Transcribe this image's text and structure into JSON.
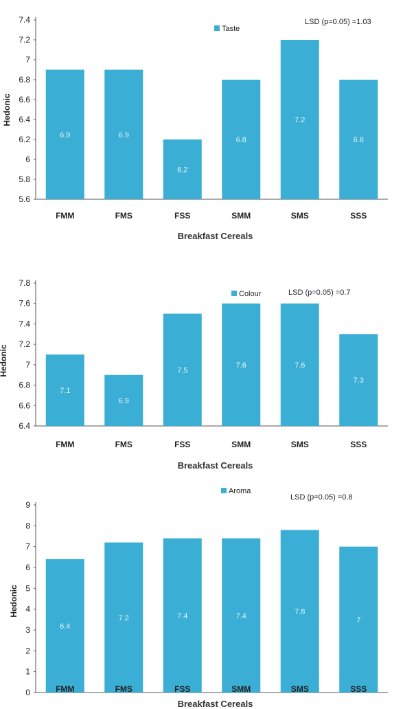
{
  "colors": {
    "bar": "#3aaed4",
    "axis": "#555555"
  },
  "chart_data": [
    {
      "type": "bar",
      "categories": [
        "FMM",
        "FMS",
        "FSS",
        "SMM",
        "SMS",
        "SSS"
      ],
      "series": [
        {
          "name": "Taste",
          "values": [
            6.9,
            6.9,
            6.2,
            6.8,
            7.2,
            6.8
          ]
        }
      ],
      "data_labels": [
        "6.9",
        "6.9",
        "6.2",
        "6.8",
        "7.2",
        "6.8"
      ],
      "ylabel": "Hedonic",
      "xlabel": "Breakfast Cereals",
      "ylim": [
        5.6,
        7.4
      ],
      "yticks": [
        5.6,
        5.8,
        6,
        6.2,
        6.4,
        6.6,
        6.8,
        7,
        7.2,
        7.4
      ],
      "ytick_labels": [
        "5.6",
        "5.8",
        "6",
        "6.2",
        "6.4",
        "6.6",
        "6.8",
        "7",
        "7.2",
        "7.4"
      ],
      "annotation": "LSD  (p=0.05) =1.03",
      "legend_position": "top"
    },
    {
      "type": "bar",
      "categories": [
        "FMM",
        "FMS",
        "FSS",
        "SMM",
        "SMS",
        "SSS"
      ],
      "series": [
        {
          "name": "Colour",
          "values": [
            7.1,
            6.9,
            7.5,
            7.6,
            7.6,
            7.3
          ]
        }
      ],
      "data_labels": [
        "7.1",
        "6.9",
        "7.5",
        "7.6",
        "7.6",
        "7.3"
      ],
      "ylabel": "Hedonic",
      "xlabel": "Breakfast Cereals",
      "ylim": [
        6.4,
        7.8
      ],
      "yticks": [
        6.4,
        6.6,
        6.8,
        7,
        7.2,
        7.4,
        7.6,
        7.8
      ],
      "ytick_labels": [
        "6.4",
        "6.6",
        "6.8",
        "7",
        "7.2",
        "7.4",
        "7.6",
        "7.8"
      ],
      "annotation": "LSD  (p=0.05) =0.7",
      "legend_position": "top-right"
    },
    {
      "type": "bar",
      "categories": [
        "FMM",
        "FMS",
        "FSS",
        "SMM",
        "SMS",
        "SSS"
      ],
      "series": [
        {
          "name": "Aroma",
          "values": [
            6.4,
            7.2,
            7.4,
            7.4,
            7.8,
            7
          ]
        }
      ],
      "data_labels": [
        "6.4",
        "7.2",
        "7.4",
        "7.4",
        "7.8",
        "7"
      ],
      "ylabel": "Hedonic",
      "xlabel": "Breakfast Cereals",
      "ylim": [
        0,
        9
      ],
      "yticks": [
        0,
        1,
        2,
        3,
        4,
        5,
        6,
        7,
        8,
        9
      ],
      "ytick_labels": [
        "0",
        "1",
        "2",
        "3",
        "4",
        "5",
        "6",
        "7",
        "8",
        "9"
      ],
      "annotation": "LSD  (p=0.05) =0.8",
      "legend_position": "top"
    }
  ]
}
